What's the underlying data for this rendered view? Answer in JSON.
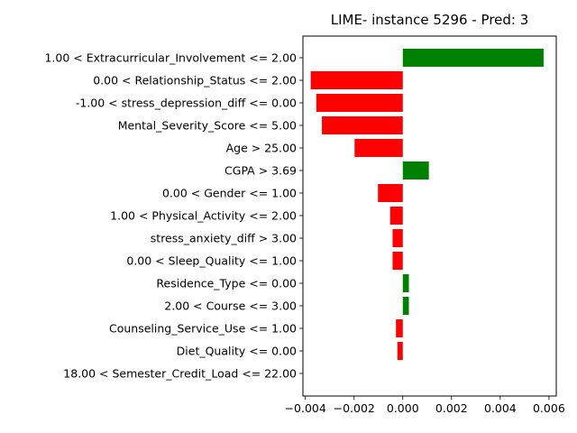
{
  "chart_data": {
    "type": "bar",
    "orientation": "horizontal",
    "title": "LIME- instance 5296 - Pred: 3",
    "xlabel": "",
    "ylabel": "",
    "xlim": [
      -0.0041,
      0.0063
    ],
    "xticks": [
      -0.004,
      -0.002,
      0.0,
      0.002,
      0.004,
      0.006
    ],
    "xtick_labels": [
      "−0.004",
      "−0.002",
      "0.000",
      "0.002",
      "0.004",
      "0.006"
    ],
    "grid": false,
    "positive_color": "#008000",
    "negative_color": "#ff0000",
    "categories": [
      "1.00 < Extracurricular_Involvement <= 2.00",
      "0.00 < Relationship_Status <= 2.00",
      "-1.00 < stress_depression_diff <= 0.00",
      "Mental_Severity_Score <= 5.00",
      "Age > 25.00",
      "CGPA > 3.69",
      "0.00 < Gender <= 1.00",
      "1.00 < Physical_Activity <= 2.00",
      "stress_anxiety_diff > 3.00",
      "0.00 < Sleep_Quality <= 1.00",
      "Residence_Type <= 0.00",
      "2.00 < Course <= 3.00",
      "Counseling_Service_Use <= 1.00",
      "Diet_Quality <= 0.00",
      "18.00 < Semester_Credit_Load <= 22.00"
    ],
    "values": [
      0.00578,
      -0.00378,
      -0.00355,
      -0.00332,
      -0.00198,
      0.00107,
      -0.00102,
      -0.00052,
      -0.00042,
      -0.00042,
      0.00025,
      0.00025,
      -0.00028,
      -0.00022,
      0.0
    ]
  }
}
